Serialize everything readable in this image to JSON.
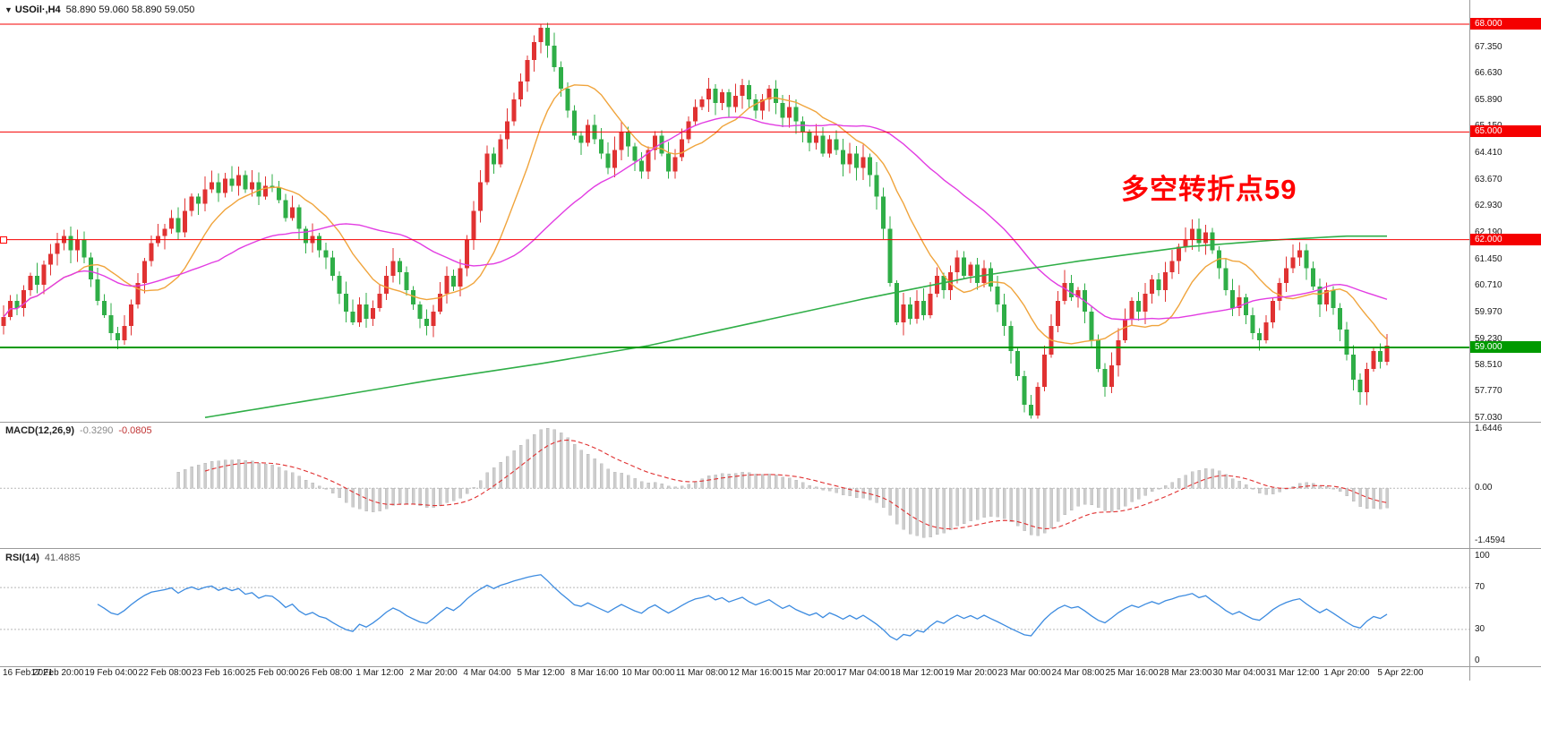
{
  "window": {
    "symbol": "USOil·,H4",
    "ohlc_text": "58.890 59.060 58.890 59.050"
  },
  "annotation": {
    "text": "多空转折点59",
    "color": "#ff0000"
  },
  "colors": {
    "up": "#e03232",
    "down": "#2fae47",
    "ma_fast": "#f0a43c",
    "ma_mid": "#e23ce2",
    "ma_slow": "#2fae47",
    "macd_hist": "#cdcdcd",
    "macd_signal": "#e03030",
    "rsi_line": "#3c8be0",
    "line_red": "#f50000",
    "line_green": "#009a00"
  },
  "price_lines": [
    {
      "label": "68.000",
      "value": 68.0,
      "color": "#f50000",
      "width": 1
    },
    {
      "label": "65.000",
      "value": 65.0,
      "color": "#f50000",
      "width": 1
    },
    {
      "label": "62.000",
      "value": 62.0,
      "color": "#f50000",
      "width": 1
    },
    {
      "label": "59.000",
      "value": 59.0,
      "color": "#009a00",
      "width": 2
    }
  ],
  "macd_panel": {
    "label": "MACD(12,26,9)",
    "value_main": "-0.3290",
    "value_signal": "-0.0805",
    "axis_labels": [
      "1.6446",
      "0.00",
      "-1.4594"
    ],
    "axis_values": [
      1.6446,
      0,
      -1.4594
    ]
  },
  "rsi_panel": {
    "label": "RSI(14)",
    "value": "41.4885",
    "axis_labels": [
      "100",
      "70",
      "30",
      "0"
    ],
    "axis_values": [
      100,
      70,
      30,
      0
    ],
    "levels": [
      70,
      30
    ]
  },
  "chart_data": {
    "type": "candlestick",
    "symbol": "USOil",
    "timeframe": "H4",
    "title": "USOil·,H4 58.890 59.060 58.890 59.050",
    "current_ohlc": {
      "open": 58.89,
      "high": 59.06,
      "low": 58.89,
      "close": 59.05
    },
    "ylim": [
      56.95,
      68.25
    ],
    "y_tick_labels": [
      "67.350",
      "66.630",
      "65.890",
      "65.150",
      "64.410",
      "63.670",
      "62.930",
      "62.190",
      "61.450",
      "60.710",
      "59.970",
      "59.230",
      "58.510",
      "57.770",
      "57.030"
    ],
    "y_tick_values": [
      67.35,
      66.63,
      65.89,
      65.15,
      64.41,
      63.67,
      62.93,
      62.19,
      61.45,
      60.71,
      59.97,
      59.23,
      58.51,
      57.77,
      57.03
    ],
    "horizontal_lines": [
      {
        "price": 68.0,
        "color": "red"
      },
      {
        "price": 65.0,
        "color": "red"
      },
      {
        "price": 62.0,
        "color": "red"
      },
      {
        "price": 59.0,
        "color": "green"
      }
    ],
    "annotation": "多空转折点59",
    "open_first": 59.6,
    "closes": [
      59.85,
      60.3,
      60.1,
      60.6,
      61.0,
      60.75,
      61.3,
      61.6,
      61.9,
      62.1,
      61.7,
      62.0,
      61.5,
      60.9,
      60.3,
      59.9,
      59.4,
      59.2,
      59.6,
      60.2,
      60.8,
      61.4,
      61.9,
      62.1,
      62.3,
      62.6,
      62.2,
      62.8,
      63.2,
      63.0,
      63.4,
      63.6,
      63.3,
      63.7,
      63.5,
      63.8,
      63.4,
      63.6,
      63.2,
      63.5,
      63.45,
      63.1,
      62.6,
      62.9,
      62.3,
      61.9,
      62.1,
      61.7,
      61.5,
      61.0,
      60.5,
      60.0,
      59.7,
      60.2,
      59.8,
      60.1,
      60.5,
      61.0,
      61.4,
      61.1,
      60.6,
      60.2,
      59.8,
      59.6,
      60.0,
      60.5,
      61.0,
      60.7,
      61.2,
      62.0,
      62.8,
      63.6,
      64.4,
      64.1,
      64.8,
      65.3,
      65.9,
      66.4,
      67.0,
      67.5,
      67.9,
      67.4,
      66.8,
      66.2,
      65.6,
      64.9,
      64.7,
      65.2,
      64.8,
      64.4,
      64.0,
      64.5,
      65.0,
      64.6,
      64.2,
      63.9,
      64.5,
      64.9,
      64.4,
      63.9,
      64.3,
      64.8,
      65.3,
      65.7,
      65.9,
      66.2,
      65.8,
      66.1,
      65.7,
      66.0,
      66.3,
      65.9,
      65.6,
      65.9,
      66.2,
      65.8,
      65.4,
      65.7,
      65.3,
      65.0,
      64.7,
      64.9,
      64.4,
      64.8,
      64.5,
      64.1,
      64.4,
      64.0,
      64.3,
      63.8,
      63.2,
      62.3,
      60.8,
      59.7,
      60.2,
      59.8,
      60.3,
      59.9,
      60.5,
      61.0,
      60.6,
      61.1,
      61.5,
      61.0,
      61.3,
      60.8,
      61.2,
      60.7,
      60.2,
      59.6,
      58.9,
      58.2,
      57.4,
      57.1,
      57.9,
      58.8,
      59.6,
      60.3,
      60.8,
      60.4,
      60.6,
      60.0,
      59.2,
      58.4,
      57.9,
      58.5,
      59.2,
      59.8,
      60.3,
      60.0,
      60.5,
      60.9,
      60.6,
      61.1,
      61.4,
      61.8,
      62.0,
      62.3,
      61.9,
      62.2,
      61.7,
      61.2,
      60.6,
      60.1,
      60.4,
      59.9,
      59.4,
      59.2,
      59.7,
      60.3,
      60.8,
      61.2,
      61.5,
      61.7,
      61.2,
      60.7,
      60.2,
      60.6,
      60.1,
      59.5,
      58.8,
      58.1,
      57.75,
      58.4,
      58.9,
      58.6,
      59.05
    ],
    "ma_slow_waypoints": [
      [
        30,
        57.05
      ],
      [
        48,
        57.6
      ],
      [
        64,
        58.1
      ],
      [
        80,
        58.55
      ],
      [
        96,
        59.05
      ],
      [
        112,
        59.7
      ],
      [
        128,
        60.35
      ],
      [
        144,
        60.95
      ],
      [
        160,
        61.4
      ],
      [
        176,
        61.8
      ],
      [
        190,
        62.0
      ],
      [
        200,
        62.1
      ],
      [
        206,
        62.1
      ]
    ],
    "x_labels": [
      "16 Feb 2021",
      "17 Feb 20:00",
      "19 Feb 04:00",
      "22 Feb 08:00",
      "23 Feb 16:00",
      "25 Feb 00:00",
      "26 Feb 08:00",
      "1 Mar 12:00",
      "2 Mar 20:00",
      "4 Mar 04:00",
      "5 Mar 12:00",
      "8 Mar 16:00",
      "10 Mar 00:00",
      "11 Mar 08:00",
      "12 Mar 16:00",
      "15 Mar 20:00",
      "17 Mar 04:00",
      "18 Mar 12:00",
      "19 Mar 20:00",
      "23 Mar 00:00",
      "24 Mar 08:00",
      "25 Mar 16:00",
      "28 Mar 23:00",
      "30 Mar 04:00",
      "31 Mar 12:00",
      "1 Apr 20:00",
      "5 Apr 22:00"
    ],
    "indicators": {
      "macd": {
        "params": [
          12,
          26,
          9
        ],
        "current_main": -0.329,
        "current_signal": -0.0805,
        "axis_range": [
          -1.4594,
          1.6446
        ]
      },
      "rsi": {
        "period": 14,
        "current": 41.4885,
        "levels": [
          70,
          30
        ],
        "axis_range": [
          0,
          100
        ]
      }
    }
  }
}
